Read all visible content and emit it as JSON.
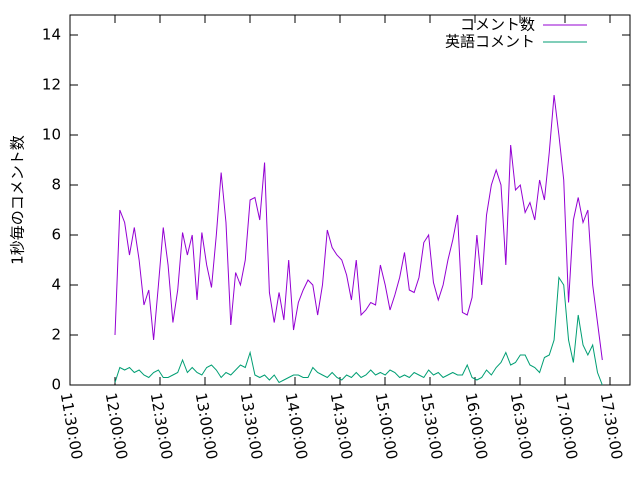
{
  "chart_data": {
    "type": "line",
    "ylabel": "1秒毎のコメント数",
    "x": [
      43200,
      43393,
      43586,
      43779,
      43972,
      44165,
      44358,
      44551,
      44744,
      44937,
      45130,
      45323,
      45516,
      45709,
      45902,
      46095,
      46288,
      46481,
      46674,
      46867,
      47060,
      47253,
      47446,
      47639,
      47832,
      48025,
      48218,
      48411,
      48604,
      48797,
      48990,
      49183,
      49376,
      49569,
      49762,
      49955,
      50148,
      50341,
      50534,
      50727,
      50920,
      51113,
      51306,
      51499,
      51692,
      51885,
      52078,
      52271,
      52464,
      52657,
      52850,
      53043,
      53236,
      53429,
      53622,
      53815,
      54008,
      54201,
      54394,
      54587,
      54780,
      54973,
      55166,
      55359,
      55552,
      55745,
      55938,
      56131,
      56324,
      56517,
      56710,
      56903,
      57096,
      57289,
      57482,
      57675,
      57868,
      58061,
      58254,
      58447,
      58640,
      58833,
      59026,
      59219,
      59412,
      59605,
      59798,
      59991,
      60184,
      60377,
      60570,
      60763,
      60956,
      61149,
      61342,
      61535,
      61728,
      61921,
      62114,
      62307,
      62500,
      62693
    ],
    "series": [
      {
        "name": "コメント数",
        "color": "#9400d3",
        "values": [
          2.0,
          7.0,
          6.5,
          5.2,
          6.3,
          5.0,
          3.2,
          3.8,
          1.8,
          4.0,
          6.3,
          4.8,
          2.5,
          3.8,
          6.1,
          5.2,
          6.0,
          3.4,
          6.1,
          4.8,
          3.9,
          6.0,
          8.5,
          6.5,
          2.4,
          4.5,
          4.0,
          5.0,
          7.4,
          7.5,
          6.6,
          8.9,
          3.7,
          2.5,
          3.7,
          2.6,
          5.0,
          2.2,
          3.3,
          3.8,
          4.2,
          4.0,
          2.8,
          4.0,
          6.2,
          5.5,
          5.2,
          5.0,
          4.4,
          3.4,
          5.0,
          2.8,
          3.0,
          3.3,
          3.2,
          4.8,
          4.0,
          3.0,
          3.6,
          4.3,
          5.3,
          3.8,
          3.7,
          4.3,
          5.7,
          6.0,
          4.1,
          3.4,
          4.0,
          5.0,
          5.8,
          6.8,
          2.9,
          2.8,
          3.5,
          6.0,
          4.0,
          6.8,
          8.0,
          8.6,
          8.0,
          4.8,
          9.6,
          7.8,
          8.0,
          6.9,
          7.3,
          6.6,
          8.2,
          7.4,
          9.3,
          11.6,
          10.0,
          8.2,
          3.3,
          6.6,
          7.5,
          6.5,
          7.0,
          4.0,
          2.5,
          1.0
        ]
      },
      {
        "name": "英語コメント",
        "color": "#009e73",
        "values": [
          0.1,
          0.7,
          0.6,
          0.7,
          0.5,
          0.6,
          0.4,
          0.3,
          0.5,
          0.6,
          0.3,
          0.3,
          0.4,
          0.5,
          1.0,
          0.5,
          0.7,
          0.5,
          0.4,
          0.7,
          0.8,
          0.6,
          0.3,
          0.5,
          0.4,
          0.6,
          0.8,
          0.7,
          1.3,
          0.4,
          0.3,
          0.4,
          0.2,
          0.4,
          0.1,
          0.2,
          0.3,
          0.4,
          0.4,
          0.3,
          0.3,
          0.7,
          0.5,
          0.4,
          0.3,
          0.5,
          0.3,
          0.2,
          0.4,
          0.3,
          0.5,
          0.3,
          0.4,
          0.6,
          0.4,
          0.5,
          0.4,
          0.6,
          0.5,
          0.3,
          0.4,
          0.3,
          0.5,
          0.4,
          0.3,
          0.6,
          0.4,
          0.5,
          0.3,
          0.4,
          0.5,
          0.4,
          0.4,
          0.8,
          0.3,
          0.2,
          0.3,
          0.6,
          0.4,
          0.7,
          0.9,
          1.3,
          0.8,
          0.9,
          1.2,
          1.2,
          0.8,
          0.7,
          0.5,
          1.1,
          1.2,
          1.8,
          4.3,
          4.0,
          1.8,
          0.9,
          2.8,
          1.6,
          1.2,
          1.6,
          0.5,
          0.0
        ]
      }
    ],
    "xlim": [
      41400,
      63800
    ],
    "xticks": [
      {
        "value": 41400,
        "label": "11:30:00"
      },
      {
        "value": 43200,
        "label": "12:00:00"
      },
      {
        "value": 45000,
        "label": "12:30:00"
      },
      {
        "value": 46800,
        "label": "13:00:00"
      },
      {
        "value": 48600,
        "label": "13:30:00"
      },
      {
        "value": 50400,
        "label": "14:00:00"
      },
      {
        "value": 52200,
        "label": "14:30:00"
      },
      {
        "value": 54000,
        "label": "15:00:00"
      },
      {
        "value": 55800,
        "label": "15:30:00"
      },
      {
        "value": 57600,
        "label": "16:00:00"
      },
      {
        "value": 59400,
        "label": "16:30:00"
      },
      {
        "value": 61200,
        "label": "17:00:00"
      },
      {
        "value": 63000,
        "label": "17:30:00"
      }
    ],
    "ylim": [
      0,
      14.8
    ],
    "yticks": [
      0,
      2,
      4,
      6,
      8,
      10,
      12,
      14
    ],
    "legend": "top-right"
  }
}
